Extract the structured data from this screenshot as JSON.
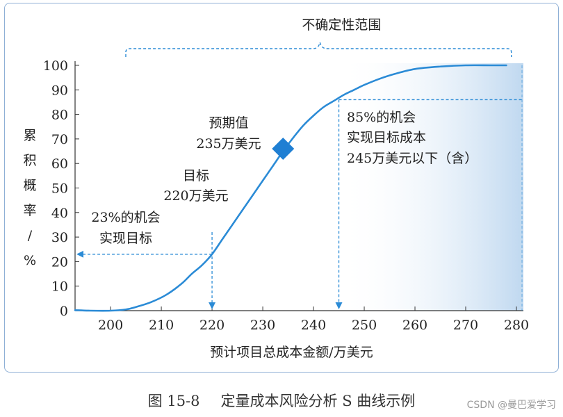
{
  "chart_data": {
    "type": "line",
    "title": "不确定性范围",
    "xlabel": "预计项目总成本金额/万美元",
    "ylabel": "累积概率/%",
    "ylabel_chars": [
      "累",
      "积",
      "概",
      "率",
      "/",
      "%"
    ],
    "xlim": [
      193,
      280
    ],
    "ylim": [
      0,
      100
    ],
    "xticks": [
      200,
      210,
      220,
      230,
      240,
      250,
      260,
      270,
      280
    ],
    "yticks": [
      0,
      10,
      20,
      30,
      40,
      50,
      60,
      70,
      80,
      90,
      100
    ],
    "series": [
      {
        "x": [
          193,
          196,
          200,
          203,
          205,
          208,
          211,
          214,
          216,
          218,
          220,
          222,
          224,
          226,
          228,
          230,
          232,
          234,
          236,
          238,
          240,
          242,
          244,
          246,
          248,
          250,
          253,
          256,
          260,
          265,
          270,
          275,
          278
        ],
        "y": [
          0.2,
          0,
          0,
          0.5,
          1.5,
          3.5,
          6.5,
          11,
          15,
          18.5,
          23,
          29,
          35,
          41,
          47,
          53,
          59,
          65,
          70.5,
          75.5,
          79.5,
          83,
          85.5,
          88,
          90,
          92,
          94.5,
          96.5,
          98.5,
          99.5,
          100,
          100,
          100
        ]
      }
    ],
    "annotations": {
      "expected_value": {
        "line1": "预期值",
        "line2": "235万美元",
        "x": 234,
        "y": 66
      },
      "target": {
        "line1": "目标",
        "line2": "220万美元",
        "x": 220,
        "y": 23
      },
      "chance_23": {
        "line1": "23%的机会",
        "line2": "实现目标"
      },
      "chance_85": {
        "line1": "85%的机会",
        "line2": "实现目标成本",
        "line3": "245万美元以下（含）",
        "x": 245,
        "y": 86
      },
      "uncertainty_range": {
        "x_start": 203,
        "x_end": 279
      }
    },
    "colors": {
      "curve": "#2b8bd6",
      "marker": "#1f7fd3",
      "shade": "#bcd6ef",
      "guide": "#2b8bd6",
      "axis": "#333333"
    },
    "grid": false
  },
  "caption": {
    "number": "图 15-8",
    "text": "定量成本风险分析 S 曲线示例"
  },
  "watermark": "CSDN @曼巴爱学习"
}
